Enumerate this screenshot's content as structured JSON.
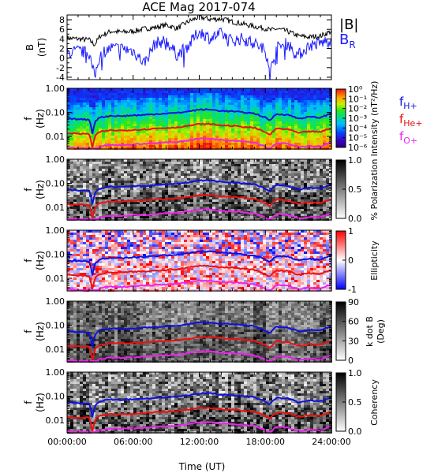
{
  "figure": {
    "title": "ACE Mag 2017-074",
    "xlabel": "Time (UT)",
    "xticks": [
      "00:00:00",
      "06:00:00",
      "12:00:00",
      "18:00:00",
      "24:00:00"
    ]
  },
  "colors": {
    "bmag": "#000000",
    "br": "#1a1aff",
    "fH": "#1010e0",
    "fHe": "#ee1010",
    "fO": "#ee22ee"
  },
  "chart_data": [
    {
      "type": "line",
      "panel": "B",
      "ylabel_line1": "B",
      "ylabel_line2": "(nT)",
      "ylim": [
        -4.5,
        9
      ],
      "yticks": [
        "-4",
        "-2",
        "0",
        "2",
        "4",
        "6",
        "8"
      ],
      "x_hours": [
        0,
        1,
        2,
        2.5,
        3,
        4,
        5,
        6,
        7,
        8,
        9,
        10,
        11,
        12,
        13,
        14,
        15,
        16,
        17,
        18,
        18.5,
        19,
        20,
        21,
        22,
        23,
        24
      ],
      "series": [
        {
          "name": "|B|",
          "values": [
            4.2,
            4.0,
            3.8,
            2.8,
            4.6,
            5.6,
            5.4,
            5.6,
            6.1,
            6.4,
            6.9,
            6.2,
            7.6,
            8.6,
            8.1,
            8.2,
            7.6,
            7.1,
            6.6,
            6.2,
            5.8,
            6.1,
            5.6,
            4.6,
            4.4,
            4.6,
            5.6
          ]
        },
        {
          "name": "B_R",
          "values": [
            1.0,
            1.5,
            1.0,
            -4.0,
            0.9,
            2.1,
            2.0,
            1.5,
            -1.0,
            3.1,
            3.6,
            0.6,
            2.6,
            5.6,
            4.1,
            5.1,
            3.6,
            4.1,
            3.1,
            1.6,
            -2.5,
            2.1,
            3.1,
            0.6,
            2.6,
            3.1,
            3.9
          ]
        }
      ]
    },
    {
      "type": "heatmap",
      "panel": "intensity",
      "ylabel_line1": "f",
      "ylabel_line2": "(Hz)",
      "yticks": [
        "1.00",
        "0.10",
        "0.01"
      ],
      "colorbar_label": "Intensity (nT²/Hz)",
      "colorbar_ticks": [
        "10⁰",
        "10⁻¹",
        "10⁻²",
        "10⁻³",
        "10⁻⁴",
        "10⁻⁵",
        "10⁻⁶"
      ],
      "legend": [
        "f_H+",
        "f_He+",
        "f_O+"
      ]
    },
    {
      "type": "heatmap",
      "panel": "polarization",
      "ylabel_line1": "f",
      "ylabel_line2": "(Hz)",
      "yticks": [
        "1.00",
        "0.10",
        "0.01"
      ],
      "colorbar_label": "% Polarization",
      "colorbar_ticks": [
        "1.0",
        "0.5",
        "0.0"
      ]
    },
    {
      "type": "heatmap",
      "panel": "ellipticity",
      "ylabel_line1": "f",
      "ylabel_line2": "(Hz)",
      "yticks": [
        "1.00",
        "0.10",
        "0.01"
      ],
      "colorbar_label": "Ellipticity",
      "colorbar_ticks": [
        "1",
        "0",
        "-1"
      ]
    },
    {
      "type": "heatmap",
      "panel": "kdotb",
      "ylabel_line1": "f",
      "ylabel_line2": "(Hz)",
      "yticks": [
        "1.00",
        "0.10",
        "0.01"
      ],
      "colorbar_label": "k dot B",
      "colorbar_label2": "(Deg)",
      "colorbar_ticks": [
        "90",
        "60",
        "30",
        "0"
      ]
    },
    {
      "type": "heatmap",
      "panel": "coherency",
      "ylabel_line1": "f",
      "ylabel_line2": "(Hz)",
      "yticks": [
        "1.00",
        "0.10",
        "0.01"
      ],
      "colorbar_label": "Coherency",
      "colorbar_ticks": [
        "1.0",
        "0.5",
        "0.0"
      ]
    }
  ],
  "gyro_lines": {
    "x_hours": [
      0,
      1,
      2,
      2.3,
      2.6,
      3,
      4,
      5,
      6,
      7,
      8,
      9,
      10,
      11,
      12,
      13,
      14,
      15,
      16,
      17,
      18,
      18.4,
      18.8,
      19,
      20,
      21,
      22,
      23,
      24
    ],
    "fH_hz": [
      0.055,
      0.052,
      0.05,
      0.012,
      0.045,
      0.062,
      0.072,
      0.07,
      0.075,
      0.078,
      0.085,
      0.09,
      0.095,
      0.11,
      0.13,
      0.13,
      0.115,
      0.11,
      0.1,
      0.09,
      0.06,
      0.045,
      0.07,
      0.085,
      0.08,
      0.055,
      0.065,
      0.06,
      0.09
    ]
  }
}
